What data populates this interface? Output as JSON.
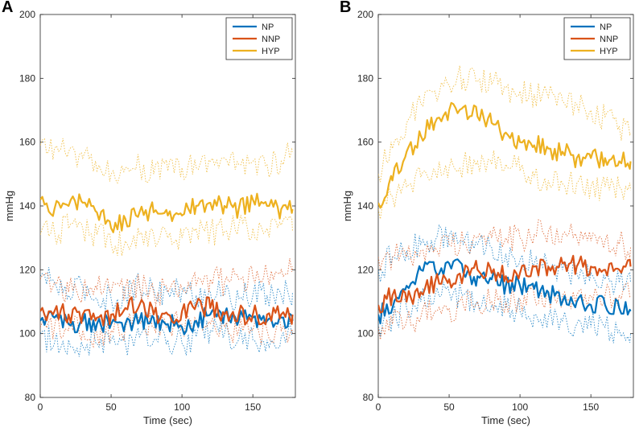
{
  "figure": {
    "panels": [
      "A",
      "B"
    ]
  },
  "chart_data": [
    {
      "type": "line",
      "panel_label": "A",
      "title": "",
      "xlabel": "Time (sec)",
      "ylabel": "mmHg",
      "xlim": [
        0,
        180
      ],
      "ylim": [
        80,
        200
      ],
      "xticks": [
        0,
        50,
        100,
        150
      ],
      "yticks": [
        80,
        100,
        120,
        140,
        160,
        180,
        200
      ],
      "legend": {
        "position": "top-right",
        "entries": [
          "NP",
          "NNP",
          "HYP"
        ]
      },
      "band_note": "dotted lines show upper and lower bounds around each mean",
      "series": [
        {
          "name": "NP",
          "color": "#0072BD",
          "x": [
            0,
            10,
            20,
            30,
            40,
            50,
            60,
            70,
            80,
            90,
            100,
            110,
            120,
            130,
            140,
            150,
            160,
            170,
            178
          ],
          "mean": [
            104,
            105,
            103,
            104,
            103,
            103,
            103,
            104,
            105,
            103,
            102,
            104,
            106,
            106,
            104,
            105,
            104,
            105,
            104
          ],
          "upper": [
            118,
            116,
            112,
            115,
            111,
            111,
            112,
            115,
            114,
            113,
            113,
            112,
            113,
            112,
            111,
            112,
            112,
            112,
            113
          ],
          "lower": [
            100,
            97,
            98,
            96,
            97,
            98,
            97,
            99,
            98,
            98,
            97,
            99,
            101,
            100,
            98,
            98,
            98,
            99,
            101
          ]
        },
        {
          "name": "NNP",
          "color": "#D95319",
          "x": [
            0,
            10,
            20,
            30,
            40,
            50,
            60,
            70,
            80,
            90,
            100,
            110,
            120,
            130,
            140,
            150,
            160,
            170,
            178
          ],
          "mean": [
            107,
            107,
            106,
            106,
            105,
            106,
            108,
            109,
            106,
            106,
            107,
            109,
            108,
            106,
            106,
            106,
            106,
            106,
            106
          ],
          "upper": [
            117,
            116,
            113,
            113,
            114,
            113,
            114,
            115,
            113,
            113,
            114,
            115,
            117,
            116,
            117,
            118,
            119,
            120,
            121
          ],
          "lower": [
            102,
            102,
            101,
            101,
            100,
            101,
            102,
            103,
            102,
            102,
            103,
            104,
            103,
            102,
            101,
            101,
            101,
            101,
            100
          ]
        },
        {
          "name": "HYP",
          "color": "#EDB120",
          "x": [
            0,
            10,
            20,
            30,
            40,
            50,
            60,
            70,
            80,
            90,
            100,
            110,
            120,
            130,
            140,
            150,
            160,
            170,
            178
          ],
          "mean": [
            142,
            139,
            140,
            141,
            138,
            133,
            136,
            138,
            138,
            137,
            137,
            140,
            141,
            140,
            139,
            142,
            140,
            139,
            139
          ],
          "upper": [
            159,
            158,
            157,
            155,
            151,
            150,
            152,
            153,
            150,
            151,
            152,
            152,
            154,
            155,
            153,
            154,
            153,
            154,
            157
          ],
          "lower": [
            131,
            132,
            133,
            133,
            131,
            128,
            129,
            131,
            131,
            130,
            130,
            133,
            132,
            132,
            134,
            133,
            133,
            134,
            132
          ]
        }
      ]
    },
    {
      "type": "line",
      "panel_label": "B",
      "title": "",
      "xlabel": "Time (sec)",
      "ylabel": "mmHg",
      "xlim": [
        0,
        180
      ],
      "ylim": [
        80,
        200
      ],
      "xticks": [
        0,
        50,
        100,
        150
      ],
      "yticks": [
        80,
        100,
        120,
        140,
        160,
        180,
        200
      ],
      "legend": {
        "position": "top-right",
        "entries": [
          "NP",
          "NNP",
          "HYP"
        ]
      },
      "band_note": "dotted lines show upper and lower bounds around each mean",
      "series": [
        {
          "name": "NP",
          "color": "#0072BD",
          "x": [
            0,
            10,
            20,
            30,
            40,
            50,
            60,
            70,
            80,
            90,
            100,
            110,
            120,
            130,
            140,
            150,
            160,
            170,
            178
          ],
          "mean": [
            106,
            108,
            115,
            120,
            120,
            122,
            119,
            118,
            117,
            115,
            115,
            114,
            113,
            110,
            110,
            109,
            109,
            108,
            107
          ],
          "upper": [
            120,
            124,
            126,
            128,
            129,
            131,
            128,
            128,
            127,
            125,
            123,
            122,
            121,
            120,
            119,
            119,
            117,
            116,
            116
          ],
          "lower": [
            103,
            105,
            108,
            110,
            112,
            113,
            112,
            110,
            109,
            108,
            107,
            106,
            105,
            104,
            103,
            102,
            102,
            101,
            100
          ]
        },
        {
          "name": "NNP",
          "color": "#D95319",
          "x": [
            0,
            10,
            20,
            30,
            40,
            50,
            60,
            70,
            80,
            90,
            100,
            110,
            120,
            130,
            140,
            150,
            160,
            170,
            178
          ],
          "mean": [
            109,
            112,
            110,
            113,
            116,
            117,
            118,
            120,
            119,
            118,
            119,
            121,
            121,
            122,
            121,
            121,
            120,
            120,
            121
          ],
          "upper": [
            124,
            124,
            124,
            126,
            127,
            128,
            129,
            130,
            130,
            130,
            130,
            131,
            132,
            131,
            130,
            129,
            129,
            128,
            127
          ],
          "lower": [
            102,
            103,
            104,
            105,
            107,
            108,
            109,
            110,
            110,
            110,
            111,
            112,
            112,
            112,
            112,
            112,
            112,
            112,
            112
          ]
        },
        {
          "name": "HYP",
          "color": "#EDB120",
          "x": [
            0,
            10,
            20,
            30,
            40,
            50,
            60,
            70,
            80,
            90,
            100,
            110,
            120,
            130,
            140,
            150,
            160,
            170,
            178
          ],
          "mean": [
            141,
            148,
            157,
            162,
            166,
            170,
            171,
            168,
            166,
            163,
            160,
            159,
            158,
            157,
            155,
            155,
            155,
            154,
            154
          ],
          "upper": [
            150,
            158,
            166,
            172,
            176,
            178,
            180,
            179,
            178,
            177,
            176,
            175,
            174,
            173,
            172,
            170,
            168,
            165,
            163
          ],
          "lower": [
            139,
            143,
            146,
            149,
            151,
            152,
            153,
            154,
            153,
            153,
            151,
            149,
            148,
            147,
            147,
            146,
            146,
            146,
            145
          ]
        }
      ]
    }
  ]
}
